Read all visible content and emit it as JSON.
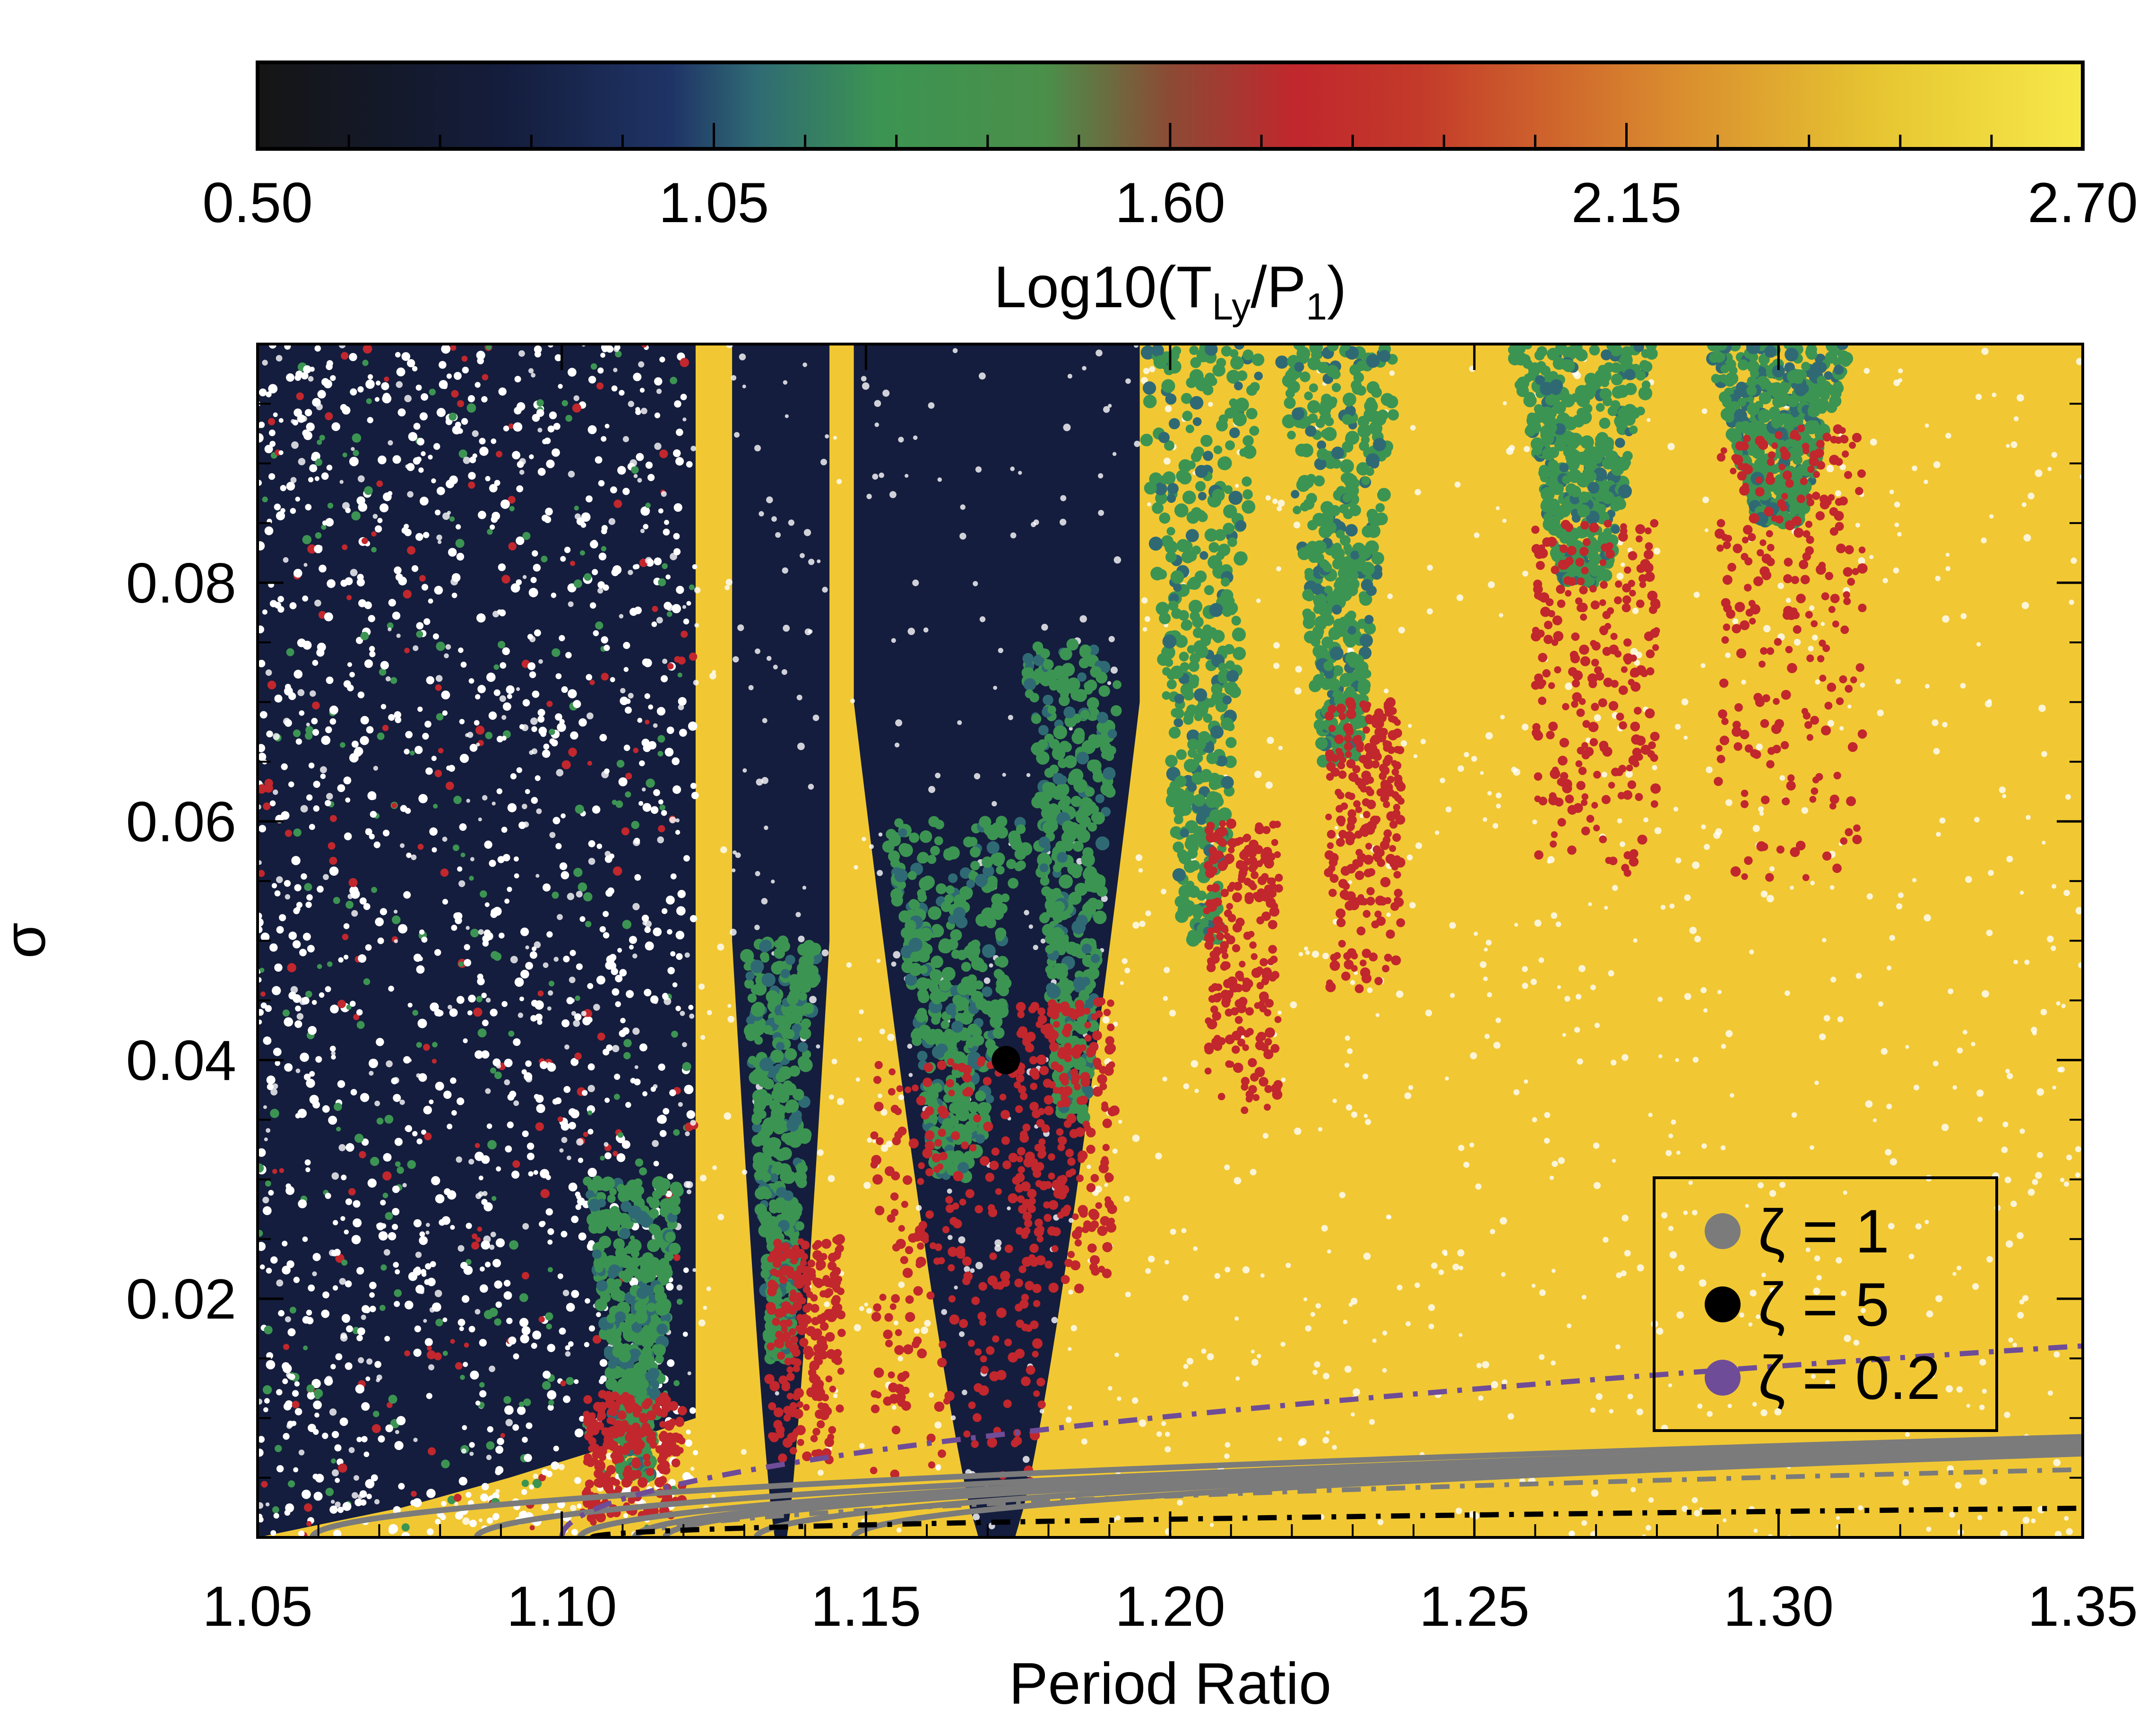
{
  "chart_data": {
    "type": "scatter",
    "xlabel": "Period Ratio",
    "ylabel": "σ",
    "xlim": [
      1.05,
      1.35
    ],
    "ylim": [
      0.0,
      0.1
    ],
    "x_ticks": [
      "1.05",
      "1.10",
      "1.15",
      "1.20",
      "1.25",
      "1.30",
      "1.35"
    ],
    "y_ticks": [
      "0.02",
      "0.04",
      "0.06",
      "0.08"
    ],
    "colorbar": {
      "label_main": "Log10(T",
      "label_sub1": "Ly",
      "label_mid": "/P",
      "label_sub2": "1",
      "label_end": ")",
      "range": [
        0.5,
        2.7
      ],
      "ticks": [
        "0.50",
        "1.05",
        "1.60",
        "2.15",
        "2.70"
      ],
      "stops": [
        {
          "v": 0.5,
          "color": "#151515"
        },
        {
          "v": 0.8,
          "color": "#141d3d"
        },
        {
          "v": 1.0,
          "color": "#1f3466"
        },
        {
          "v": 1.1,
          "color": "#2f6a74"
        },
        {
          "v": 1.25,
          "color": "#3c9452"
        },
        {
          "v": 1.45,
          "color": "#4a8f4a"
        },
        {
          "v": 1.6,
          "color": "#8c4a35"
        },
        {
          "v": 1.75,
          "color": "#c1272d"
        },
        {
          "v": 1.9,
          "color": "#c33a2a"
        },
        {
          "v": 2.2,
          "color": "#d98a2e"
        },
        {
          "v": 2.45,
          "color": "#e6c531"
        },
        {
          "v": 2.7,
          "color": "#f7e94a"
        }
      ]
    },
    "background_color": "#f1c833",
    "dark_region_color": "#141d3d",
    "green_color": "#3c9452",
    "red_color": "#c1272d",
    "dark_regions": [
      {
        "x0": 1.05,
        "x1": 1.122,
        "taper_start": 0.01,
        "min_width": 0.0
      },
      {
        "x0": 1.128,
        "x1": 1.144,
        "taper_start": 0.05,
        "min_width": 0.002
      },
      {
        "x0": 1.148,
        "x1": 1.195,
        "taper_start": 0.07,
        "min_width": 0.006
      }
    ],
    "green_columns": [
      {
        "x_center": 1.112,
        "half_width": 0.008,
        "y_top": 0.03,
        "y_bottom": 0.005
      },
      {
        "x_center": 1.136,
        "half_width": 0.006,
        "y_top": 0.05,
        "y_bottom": 0.015
      },
      {
        "x_center": 1.165,
        "half_width": 0.012,
        "y_top": 0.06,
        "y_bottom": 0.03
      },
      {
        "x_center": 1.184,
        "half_width": 0.008,
        "y_top": 0.075,
        "y_bottom": 0.035
      },
      {
        "x_center": 1.205,
        "half_width": 0.01,
        "y_top": 0.1,
        "y_bottom": 0.05
      },
      {
        "x_center": 1.228,
        "half_width": 0.01,
        "y_top": 0.1,
        "y_bottom": 0.065
      },
      {
        "x_center": 1.268,
        "half_width": 0.012,
        "y_top": 0.1,
        "y_bottom": 0.08
      },
      {
        "x_center": 1.3,
        "half_width": 0.012,
        "y_top": 0.1,
        "y_bottom": 0.085
      }
    ],
    "red_streaks": [
      {
        "x_center": 1.112,
        "spread": 0.008,
        "y_top": 0.012,
        "y_bottom": 0.001
      },
      {
        "x_center": 1.14,
        "spread": 0.006,
        "y_top": 0.025,
        "y_bottom": 0.006
      },
      {
        "x_center": 1.165,
        "spread": 0.014,
        "y_top": 0.04,
        "y_bottom": 0.004
      },
      {
        "x_center": 1.183,
        "spread": 0.008,
        "y_top": 0.045,
        "y_bottom": 0.02
      },
      {
        "x_center": 1.212,
        "spread": 0.006,
        "y_top": 0.06,
        "y_bottom": 0.035
      },
      {
        "x_center": 1.232,
        "spread": 0.006,
        "y_top": 0.07,
        "y_bottom": 0.045
      },
      {
        "x_center": 1.27,
        "spread": 0.01,
        "y_top": 0.085,
        "y_bottom": 0.055
      },
      {
        "x_center": 1.302,
        "spread": 0.012,
        "y_top": 0.093,
        "y_bottom": 0.055
      }
    ],
    "curves_zeta_1": [
      {
        "x0": 1.059,
        "k": 0.000244
      },
      {
        "x0": 1.086,
        "k": 0.000244
      },
      {
        "x0": 1.103,
        "k": 0.000244
      },
      {
        "x0": 1.112,
        "k": 0.000244
      },
      {
        "x0": 1.117,
        "k": 0.000244
      },
      {
        "x0": 1.132,
        "k": 0.000244
      },
      {
        "x0": 1.148,
        "k": 0.000244
      }
    ],
    "curve_zeta_1_dashdot": {
      "x0": 1.112,
      "k": 0.000136
    },
    "curve_zeta_5_dashdot": {
      "x0": 1.105,
      "k": 2.44e-05
    },
    "curve_zeta_02_dashdot": {
      "x0": 1.1,
      "k": 0.00103
    },
    "highlight_point": {
      "x": 1.173,
      "y": 0.04
    },
    "legend": {
      "position": "lower-right",
      "entries": [
        {
          "label": "ζ = 1",
          "color": "#7b7b7b"
        },
        {
          "label": "ζ = 5",
          "color": "#000000"
        },
        {
          "label": "ζ = 0.2",
          "color": "#6f4c98"
        }
      ]
    },
    "grey_color": "#7b7b7b",
    "black_color": "#000000",
    "purple_color": "#6f4c98"
  }
}
